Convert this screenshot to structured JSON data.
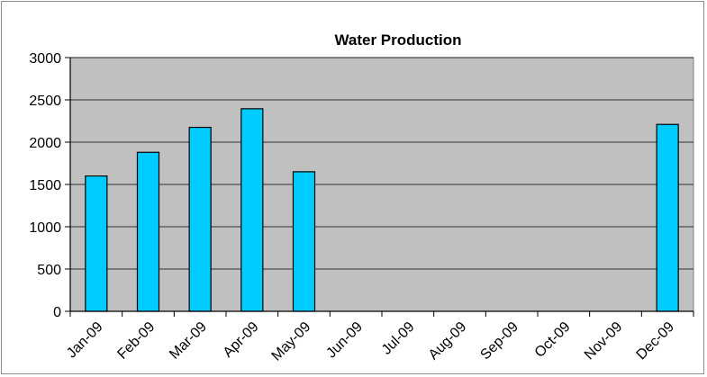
{
  "chart_data": {
    "type": "bar",
    "title": "Water Production",
    "xlabel": "",
    "ylabel": "",
    "categories": [
      "Jan-09",
      "Feb-09",
      "Mar-09",
      "Apr-09",
      "May-09",
      "Jun-09",
      "Jul-09",
      "Aug-09",
      "Sep-09",
      "Oct-09",
      "Nov-09",
      "Dec-09"
    ],
    "values": [
      1600,
      1880,
      2175,
      2395,
      1650,
      0,
      0,
      0,
      0,
      0,
      0,
      2210
    ],
    "ylim": [
      0,
      3000
    ],
    "yticks": [
      "0",
      "500",
      "1000",
      "1500",
      "2000",
      "2500",
      "3000"
    ],
    "grid": true,
    "legend": "none",
    "colors": {
      "bar_fill": "#00ccff",
      "bar_stroke": "#000000",
      "plot_background": "#c0c0c0",
      "gridline": "#000000"
    }
  }
}
